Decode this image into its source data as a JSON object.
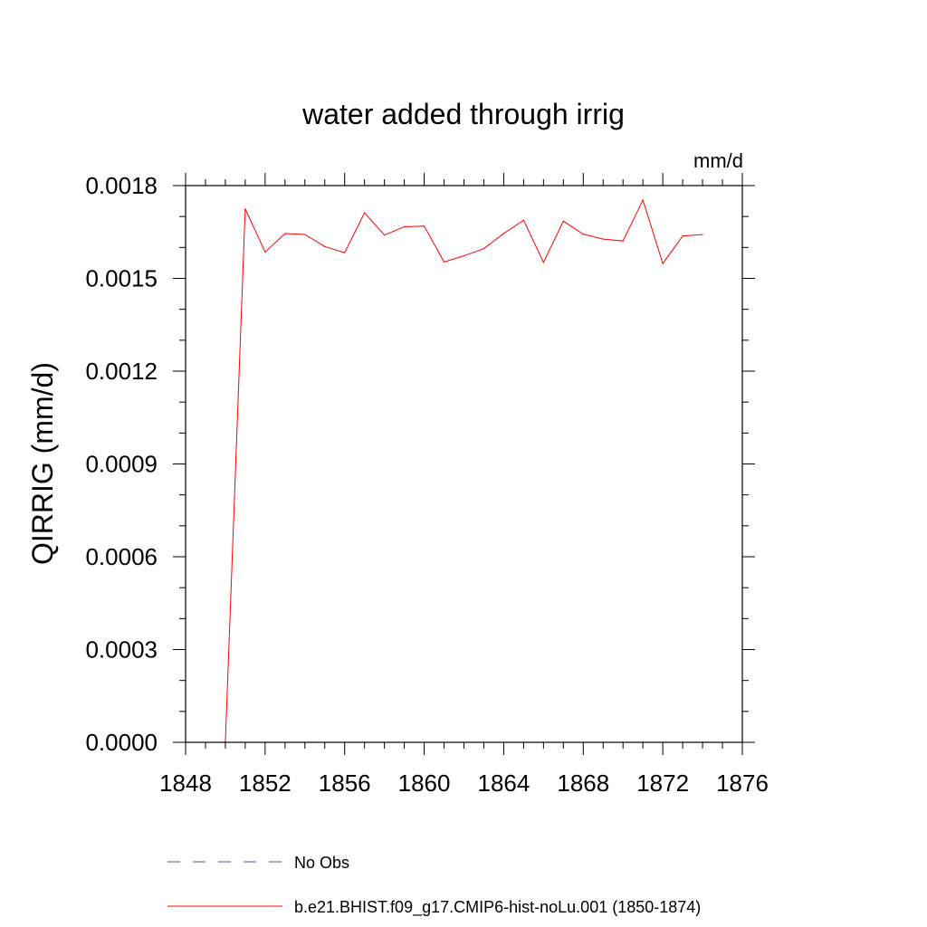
{
  "chart_data": {
    "type": "line",
    "title": "water added through irrig",
    "units": "mm/d",
    "ylabel": "QIRRIG  (mm/d)",
    "xlabel": "",
    "xlim": [
      1848,
      1876
    ],
    "ylim": [
      0,
      0.0018
    ],
    "x_ticks": [
      1848,
      1852,
      1856,
      1860,
      1864,
      1868,
      1872,
      1876
    ],
    "x_tick_labels": [
      "1848",
      "1852",
      "1856",
      "1860",
      "1864",
      "1868",
      "1872",
      "1876"
    ],
    "y_ticks": [
      0,
      0.0003,
      0.0006,
      0.0009,
      0.0012,
      0.0015,
      0.0018
    ],
    "y_tick_labels": [
      "0.0000",
      "0.0003",
      "0.0006",
      "0.0009",
      "0.0012",
      "0.0015",
      "0.0018"
    ],
    "grid": false,
    "legend_position": "bottom",
    "series": [
      {
        "name": "No Obs",
        "color": "#4a4ab8",
        "dash": "dashed",
        "x": [],
        "values": []
      },
      {
        "name": "b.e21.BHIST.f09_g17.CMIP6-hist-noLu.001 (1850-1874)",
        "color": "#ff0000",
        "dash": "solid",
        "x": [
          1850,
          1851,
          1852,
          1853,
          1854,
          1855,
          1856,
          1857,
          1858,
          1859,
          1860,
          1861,
          1862,
          1863,
          1864,
          1865,
          1866,
          1867,
          1868,
          1869,
          1870,
          1871,
          1872,
          1873,
          1874
        ],
        "values": [
          0.0,
          0.001725,
          0.001585,
          0.001645,
          0.001642,
          0.001603,
          0.001583,
          0.001712,
          0.00164,
          0.001667,
          0.001669,
          0.001553,
          0.001573,
          0.001596,
          0.001645,
          0.001688,
          0.001552,
          0.001685,
          0.001643,
          0.001627,
          0.001621,
          0.001753,
          0.001548,
          0.001637,
          0.001642
        ]
      }
    ]
  }
}
